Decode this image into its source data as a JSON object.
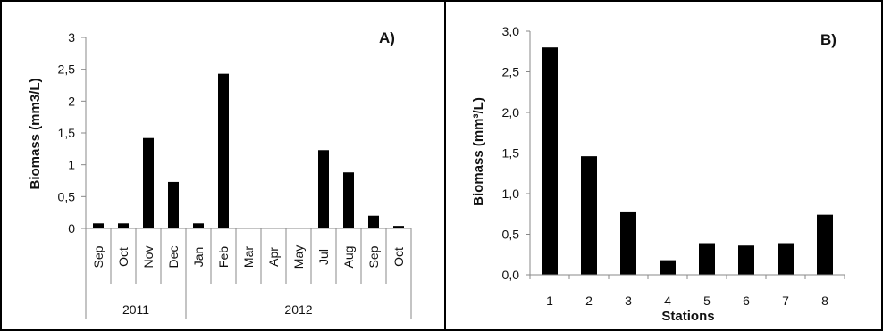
{
  "chart_data": [
    {
      "type": "bar",
      "panel_label": "A)",
      "title": "",
      "xlabel": "",
      "ylabel": "Biomass (mm3/L)",
      "ylim": [
        0,
        3
      ],
      "y_ticks": [
        "0",
        "0,5",
        "1",
        "1,5",
        "2",
        "2,5",
        "3"
      ],
      "categories": [
        "Sep",
        "Oct",
        "Nov",
        "Dec",
        "Jan",
        "Feb",
        "Mar",
        "Apr",
        "May",
        "Jul",
        "Aug",
        "Sep",
        "Oct"
      ],
      "groups": [
        {
          "label": "2011",
          "count": 4
        },
        {
          "label": "2012",
          "count": 9
        }
      ],
      "values": [
        0.08,
        0.08,
        1.42,
        0.73,
        0.08,
        2.43,
        0,
        0.01,
        0.01,
        1.23,
        0.88,
        0.2,
        0.04
      ],
      "bar_color": "#000000",
      "grid": false
    },
    {
      "type": "bar",
      "panel_label": "B)",
      "title": "",
      "xlabel": "Stations",
      "ylabel": "Biomass (mm³/L)",
      "ylim": [
        0,
        3
      ],
      "y_ticks": [
        "0,0",
        "0,5",
        "1,0",
        "1,5",
        "2,0",
        "2,5",
        "3,0"
      ],
      "categories": [
        "1",
        "2",
        "3",
        "4",
        "5",
        "6",
        "7",
        "8"
      ],
      "values": [
        2.8,
        1.46,
        0.77,
        0.18,
        0.39,
        0.36,
        0.39,
        0.74
      ],
      "bar_color": "#000000",
      "grid": false
    }
  ]
}
